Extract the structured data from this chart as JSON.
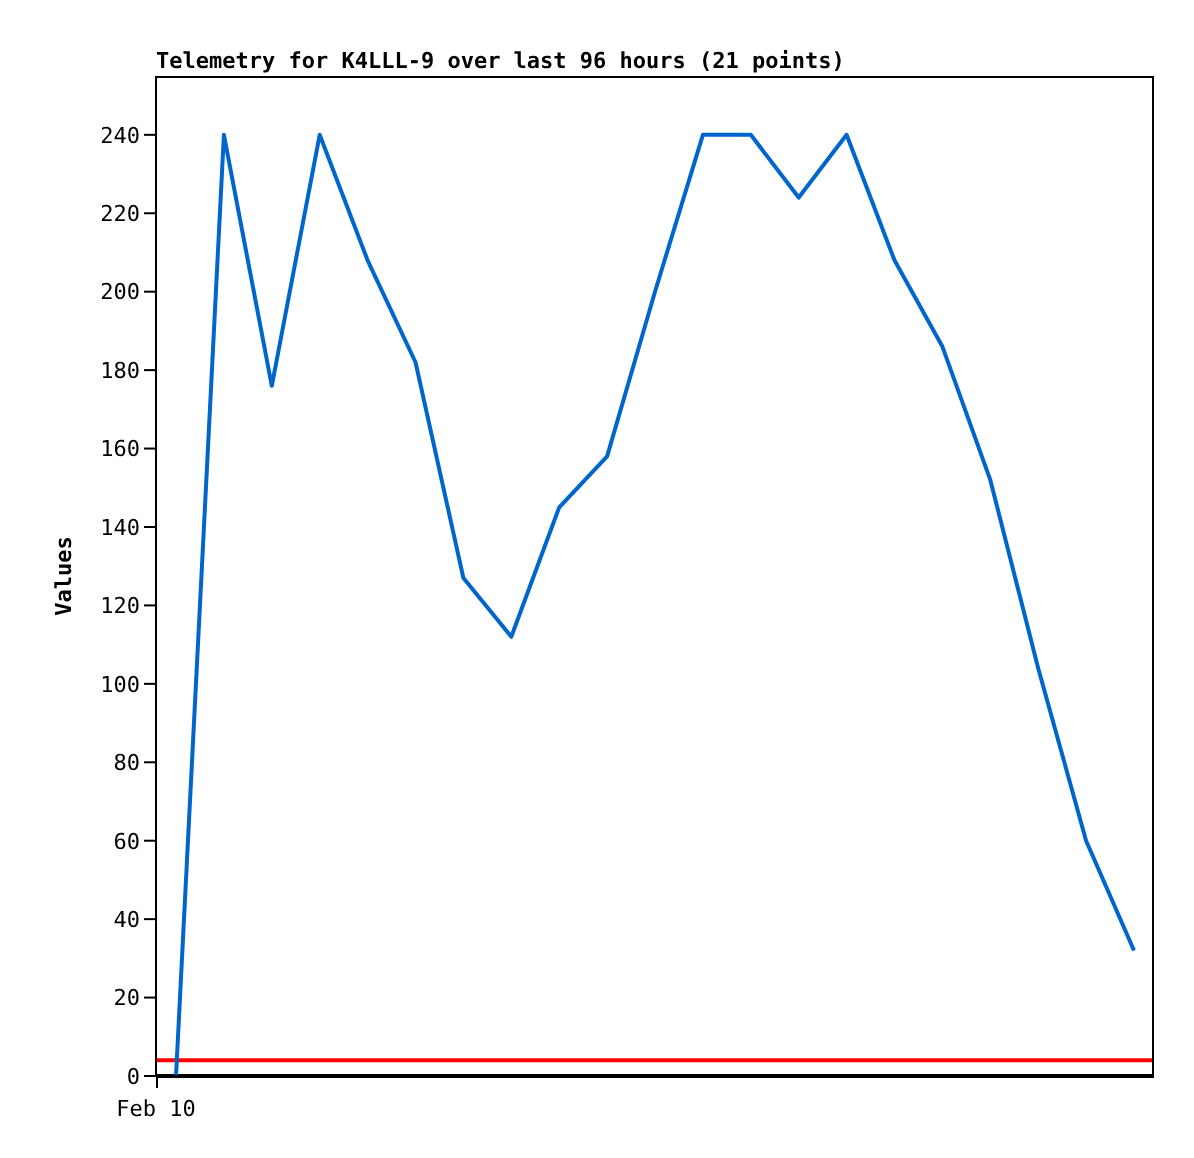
{
  "chart_data": {
    "type": "line",
    "title": "Telemetry for K4LLL-9 over last 96 hours (21 points)",
    "ylabel": "Values",
    "annotations": [
      "Feb 10"
    ],
    "categories": [
      null,
      null,
      null,
      null,
      null,
      null,
      null,
      null,
      null,
      null,
      null,
      null,
      null,
      null,
      null,
      null,
      null,
      null,
      null,
      null,
      null
    ],
    "ylim": [
      0,
      255
    ],
    "yticks": [
      0,
      20,
      40,
      60,
      80,
      100,
      120,
      140,
      160,
      180,
      200,
      220,
      240
    ],
    "grid": false,
    "marker": "none",
    "line_style": "solid",
    "series": [
      {
        "color": "#0066cc",
        "values": [
          0,
          240,
          176,
          240,
          208,
          182,
          127,
          112,
          145,
          158,
          200,
          240,
          240,
          224,
          240,
          208,
          186,
          152,
          104,
          60,
          32
        ]
      }
    ],
    "ref_lines": [
      {
        "axis": "y",
        "value": 4,
        "color": "#ff0000"
      },
      {
        "axis": "y",
        "value": 0,
        "color": "#000000"
      }
    ]
  }
}
